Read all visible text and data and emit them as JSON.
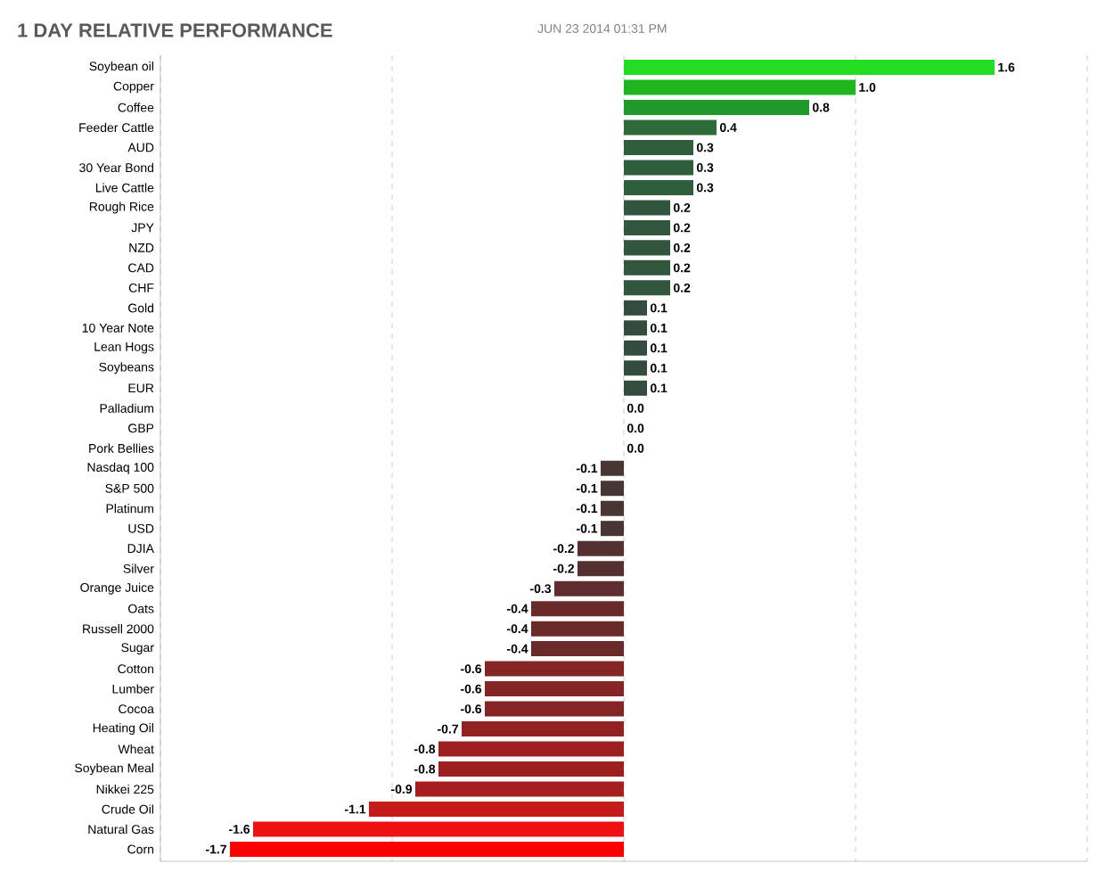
{
  "chart_data": {
    "type": "bar",
    "orientation": "horizontal",
    "title": "1 DAY RELATIVE PERFORMANCE",
    "subtitle": "JUN 23 2014 01:31 PM",
    "categories": [
      "Soybean oil",
      "Copper",
      "Coffee",
      "Feeder Cattle",
      "AUD",
      "30 Year Bond",
      "Live Cattle",
      "Rough Rice",
      "JPY",
      "NZD",
      "CAD",
      "CHF",
      "Gold",
      "10 Year Note",
      "Lean Hogs",
      "Soybeans",
      "EUR",
      "Palladium",
      "GBP",
      "Pork Bellies",
      "Nasdaq 100",
      "S&P 500",
      "Platinum",
      "USD",
      "DJIA",
      "Silver",
      "Orange Juice",
      "Oats",
      "Russell 2000",
      "Sugar",
      "Cotton",
      "Lumber",
      "Cocoa",
      "Heating Oil",
      "Wheat",
      "Soybean Meal",
      "Nikkei 225",
      "Crude Oil",
      "Natural Gas",
      "Corn"
    ],
    "values": [
      1.6,
      1.0,
      0.8,
      0.4,
      0.3,
      0.3,
      0.3,
      0.2,
      0.2,
      0.2,
      0.2,
      0.2,
      0.1,
      0.1,
      0.1,
      0.1,
      0.1,
      0.0,
      0.0,
      0.0,
      -0.1,
      -0.1,
      -0.1,
      -0.1,
      -0.2,
      -0.2,
      -0.3,
      -0.4,
      -0.4,
      -0.4,
      -0.6,
      -0.6,
      -0.6,
      -0.7,
      -0.8,
      -0.8,
      -0.9,
      -1.1,
      -1.6,
      -1.7
    ],
    "value_labels": [
      "1.6",
      "1.0",
      "0.8",
      "0.4",
      "0.3",
      "0.3",
      "0.3",
      "0.2",
      "0.2",
      "0.2",
      "0.2",
      "0.2",
      "0.1",
      "0.1",
      "0.1",
      "0.1",
      "0.1",
      "0.0",
      "0.0",
      "0.0",
      "-0.1",
      "-0.1",
      "-0.1",
      "-0.1",
      "-0.2",
      "-0.2",
      "-0.3",
      "-0.4",
      "-0.4",
      "-0.4",
      "-0.6",
      "-0.6",
      "-0.6",
      "-0.7",
      "-0.8",
      "-0.8",
      "-0.9",
      "-1.1",
      "-1.6",
      "-1.7"
    ],
    "colors": [
      "#22dd22",
      "#1fb51f",
      "#1e9a2a",
      "#2d6b3a",
      "#2f5e3c",
      "#2f5e3c",
      "#2f5e3c",
      "#31553d",
      "#31553d",
      "#31553d",
      "#31553d",
      "#31553d",
      "#334c3d",
      "#334c3d",
      "#334c3d",
      "#334c3d",
      "#334c3d",
      "#3a3a3a",
      "#3a3a3a",
      "#3a3a3a",
      "#4a3535",
      "#4a3535",
      "#4a3535",
      "#4a3535",
      "#553030",
      "#553030",
      "#602e2e",
      "#6b2a2a",
      "#6b2a2a",
      "#6b2a2a",
      "#852424",
      "#852424",
      "#852424",
      "#902222",
      "#9c2020",
      "#9c2020",
      "#a81e1e",
      "#c41a1a",
      "#ee1111",
      "#ff0000"
    ],
    "xlim": [
      -2,
      2
    ],
    "xticks": [
      {
        "value": -2,
        "label": null
      },
      {
        "value": -1,
        "label": null
      },
      {
        "value": 0,
        "label": null
      },
      {
        "value": 1,
        "label": null
      },
      {
        "value": 2,
        "label": null
      }
    ],
    "grid": "x",
    "tick_labels": "y"
  }
}
